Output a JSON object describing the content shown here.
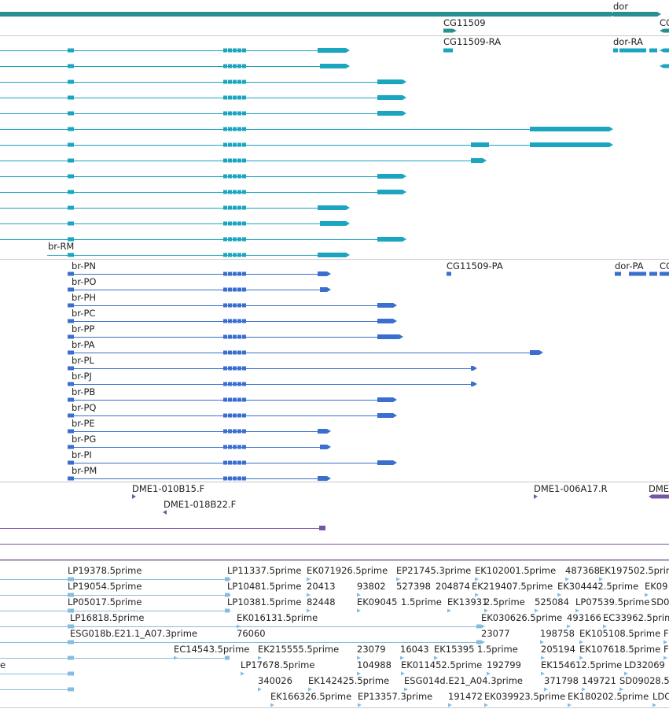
{
  "colors": {
    "gene": "#2a8f8f",
    "transcript": "#1ba5c0",
    "protein": "#3a6fcf",
    "clone": "#7555a8",
    "est": "#86bcdf",
    "separator": "#c8c8c8"
  },
  "gene_track": {
    "labels": [
      "dor",
      "CG11509",
      "CG"
    ]
  },
  "transcript_track": {
    "labels": [
      "CG11509-RA",
      "dor-RA",
      "br-RM"
    ]
  },
  "protein_track": {
    "labels": [
      "br-PN",
      "CG11509-PA",
      "dor-PA",
      "CG",
      "br-PO",
      "br-PH",
      "br-PC",
      "br-PP",
      "br-PA",
      "br-PL",
      "br-PJ",
      "br-PB",
      "br-PQ",
      "br-PE",
      "br-PG",
      "br-PI",
      "br-PM"
    ]
  },
  "clone_track": {
    "labels": [
      "DME1-010B15.F",
      "DME1-006A17.R",
      "DME",
      "DME1-018B22.F"
    ]
  },
  "est_track": {
    "labels": [
      "LP19378.5prime",
      "LP11337.5prime",
      "EK071926.5prime",
      "EP21745.3prime",
      "EK102001.5prime",
      "487368",
      "EK197502.5prime",
      "LP19054.5prime",
      "LP10481.5prime",
      "20413",
      "93802",
      "527398",
      "204874",
      "EK219407.5prime",
      "EK304442.5prime",
      "EK09",
      "LP05017.5prime",
      "LP10381.5prime",
      "82448",
      "EK09045",
      "1.5prime",
      "EK13931",
      "2.5prime",
      "525084",
      "LP07539.5prime",
      "SD0",
      "LP16818.5prime",
      "EK016131.5prime",
      "EK030626.5prime",
      "493166",
      "EC33962.5prime",
      "ESG018b.E21.1_A07.3prime",
      "76060",
      "23077",
      "198758",
      "EK105108.5prime",
      "F",
      "EC14543.5prime",
      "EK215555.5prime",
      "23079",
      "16043",
      "EK15395",
      "1.5prime",
      "205194",
      "EK107618.5prime",
      "F",
      "e",
      "LP17678.5prime",
      "104988",
      "EK011452.5prime",
      "192799",
      "EK154612.5prime",
      "LD32069",
      "340026",
      "EK142425.5prime",
      "ESG014d.E21_A04.3prime",
      "371798",
      "149721",
      "SD09028.5",
      "EK166326.5prime",
      "EP13357.3prime",
      "191472",
      "EK039923.5prime",
      "EK180202.5prime",
      "LDC"
    ]
  }
}
